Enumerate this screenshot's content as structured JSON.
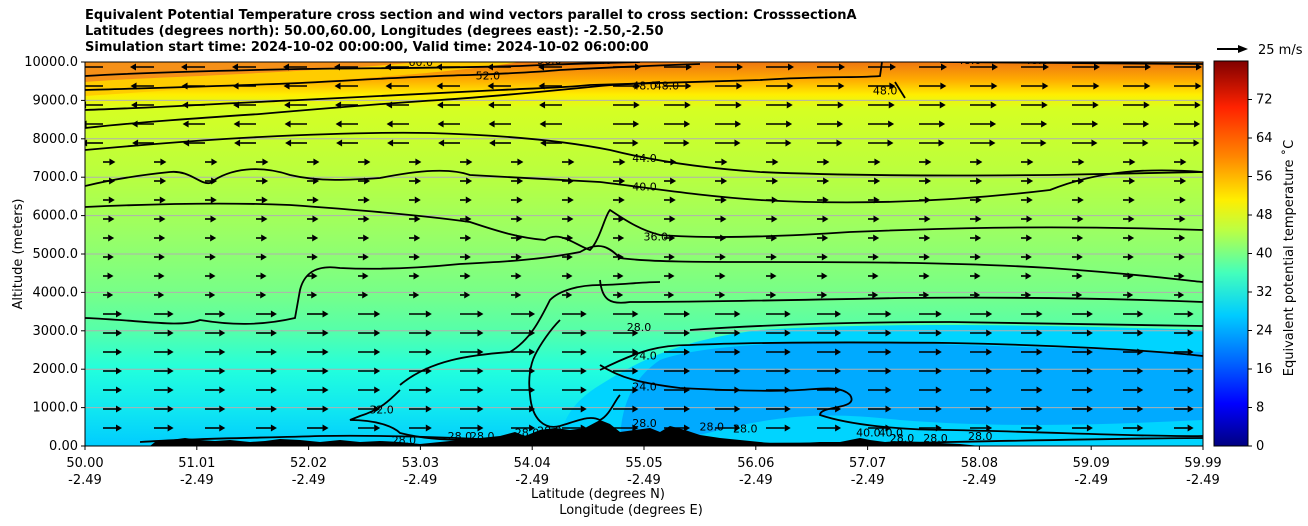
{
  "title": {
    "line1": "Equivalent Potential Temperature cross section and wind vectors parallel to cross section: CrosssectionA",
    "line2": "Latitudes (degrees north): 50.00,60.00, Longitudes (degrees east): -2.50,-2.50",
    "line3": "Simulation start time: 2024-10-02 00:00:00, Valid time: 2024-10-02 06:00:00"
  },
  "chart_data": {
    "type": "heatmap",
    "ylabel": "Altitude (meters)",
    "xlabel_lat": "Latitude (degrees N)",
    "xlabel_lon": "Longitude (degrees E)",
    "ylim": [
      0,
      10000
    ],
    "y_ticks": [
      "0.00",
      "1000.0",
      "2000.0",
      "3000.0",
      "4000.0",
      "5000.0",
      "6000.0",
      "7000.0",
      "8000.0",
      "9000.0",
      "10000.0"
    ],
    "x_ticks": [
      {
        "lat": "50.00",
        "lon": "-2.49"
      },
      {
        "lat": "51.01",
        "lon": "-2.49"
      },
      {
        "lat": "52.02",
        "lon": "-2.49"
      },
      {
        "lat": "53.03",
        "lon": "-2.49"
      },
      {
        "lat": "54.04",
        "lon": "-2.49"
      },
      {
        "lat": "55.05",
        "lon": "-2.49"
      },
      {
        "lat": "56.06",
        "lon": "-2.49"
      },
      {
        "lat": "57.07",
        "lon": "-2.49"
      },
      {
        "lat": "58.08",
        "lon": "-2.49"
      },
      {
        "lat": "59.09",
        "lon": "-2.49"
      },
      {
        "lat": "59.99",
        "lon": "-2.49"
      }
    ],
    "grid": "horizontal",
    "colorbar": {
      "label": "Equivalent potential temperature ˚C",
      "range": [
        0,
        80
      ],
      "ticks": [
        "0",
        "8",
        "16",
        "24",
        "32",
        "40",
        "48",
        "56",
        "64",
        "72"
      ]
    },
    "quiver_key": "25 m/s",
    "contour_labels": [
      {
        "text": "60.0",
        "lat": 53.0,
        "alt": 9900
      },
      {
        "text": "56.0",
        "lat": 54.15,
        "alt": 9950
      },
      {
        "text": "56.0",
        "lat": 54.6,
        "alt": 9950
      },
      {
        "text": "52.0",
        "lat": 53.6,
        "alt": 9550
      },
      {
        "text": "48.0",
        "lat": 55.0,
        "alt": 9280
      },
      {
        "text": "48.0",
        "lat": 55.2,
        "alt": 9280
      },
      {
        "text": "48.0",
        "lat": 57.9,
        "alt": 9950
      },
      {
        "text": "48.0",
        "lat": 58.5,
        "alt": 9950
      },
      {
        "text": "48.0",
        "lat": 57.15,
        "alt": 9150
      },
      {
        "text": "44.0",
        "lat": 55.0,
        "alt": 7400
      },
      {
        "text": "40.0",
        "lat": 55.0,
        "alt": 6650
      },
      {
        "text": "36.0",
        "lat": 55.1,
        "alt": 5350
      },
      {
        "text": "28.0",
        "lat": 54.95,
        "alt": 3000
      },
      {
        "text": "24.0",
        "lat": 55.0,
        "alt": 2250
      },
      {
        "text": "24.0",
        "lat": 55.0,
        "alt": 1450
      },
      {
        "text": "32.0",
        "lat": 52.65,
        "alt": 850
      },
      {
        "text": "28.0",
        "lat": 52.85,
        "alt": 50
      },
      {
        "text": "28.0",
        "lat": 53.35,
        "alt": 150
      },
      {
        "text": "28.0",
        "lat": 53.55,
        "alt": 150
      },
      {
        "text": "28.0",
        "lat": 53.95,
        "alt": 250
      },
      {
        "text": "28.0",
        "lat": 54.15,
        "alt": 300
      },
      {
        "text": "28.0",
        "lat": 55.0,
        "alt": 500
      },
      {
        "text": "28.0",
        "lat": 55.6,
        "alt": 400
      },
      {
        "text": "28.0",
        "lat": 55.9,
        "alt": 350
      },
      {
        "text": "40.0",
        "lat": 57.0,
        "alt": 250
      },
      {
        "text": "40.0",
        "lat": 57.2,
        "alt": 250
      },
      {
        "text": "28.0",
        "lat": 57.3,
        "alt": 100
      },
      {
        "text": "28.0",
        "lat": 57.6,
        "alt": 100
      },
      {
        "text": "28.0",
        "lat": 58.0,
        "alt": 150
      }
    ]
  }
}
